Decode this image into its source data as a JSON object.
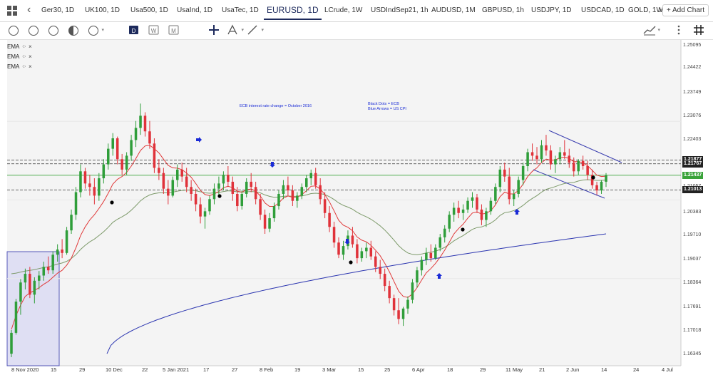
{
  "tabs": [
    {
      "label": "Ger30, 1D",
      "active": false
    },
    {
      "label": "UK100, 1D",
      "active": false
    },
    {
      "label": "Usa500, 1D",
      "active": false
    },
    {
      "label": "UsaInd, 1D",
      "active": false
    },
    {
      "label": "UsaTec, 1D",
      "active": false
    },
    {
      "label": "EURUSD, 1D",
      "active": true
    },
    {
      "label": "LCrude, 1W",
      "active": false
    },
    {
      "label": "USDIndSep21, 1h",
      "active": false
    },
    {
      "label": "AUDUSD, 1M",
      "active": false
    },
    {
      "label": "GBPUSD, 1h",
      "active": false
    },
    {
      "label": "USDJPY, 1D",
      "active": false
    },
    {
      "label": "USDCAD, 1D",
      "active": false
    },
    {
      "label": "GOLD, 1W",
      "active": false
    }
  ],
  "add_chart_label": "+ Add Chart",
  "toolbar_icons": [
    "circle-tool-icon",
    "circle-tool-2-icon",
    "circle-tool-3-icon",
    "circle-tool-4-icon",
    "circle-tool-5-icon",
    "timeframe-d-icon",
    "timeframe-w-icon",
    "timeframe-m-icon",
    "crosshair-icon",
    "fibonacci-icon",
    "line-draw-icon",
    "indicator-icon",
    "settings-icon",
    "grid-icon"
  ],
  "timeframe_letters": [
    "D",
    "W",
    "M"
  ],
  "indicators": [
    {
      "name": "EMA"
    },
    {
      "name": "EMA"
    },
    {
      "name": "EMA"
    }
  ],
  "annotations": {
    "ecb_note": "ECB interest rate change = October 2016",
    "legend_note_1": "Black Dots = ECB",
    "legend_note_2": "Blue Arrows = US CPI"
  },
  "price_axis": [
    "1.25095",
    "1.24422",
    "1.23749",
    "1.23076",
    "1.22403",
    "1.21730",
    "1.21057",
    "1.20383",
    "1.19710",
    "1.19037",
    "1.18364",
    "1.17691",
    "1.17018",
    "1.16345"
  ],
  "price_tags": [
    {
      "value": "1.21877",
      "color": "#ffffff",
      "bg": "#222222"
    },
    {
      "value": "1.21767",
      "color": "#ffffff",
      "bg": "#222222"
    },
    {
      "value": "1.21437",
      "color": "#ffffff",
      "bg": "#3aa33a"
    },
    {
      "value": "1.21013",
      "color": "#ffffff",
      "bg": "#222222"
    }
  ],
  "date_axis": [
    "8 Nov 2020",
    "15",
    "29",
    "10 Dec",
    "22",
    "5 Jan 2021",
    "17",
    "27",
    "8 Feb",
    "19",
    "3 Mar",
    "15",
    "25",
    "6 Apr",
    "18",
    "29",
    "11 May",
    "21",
    "2 Jun",
    "14",
    "24",
    "4 Jul"
  ],
  "chart_data": {
    "type": "candlestick",
    "symbol": "EURUSD, 1D",
    "ylim": [
      1.162,
      1.2525
    ],
    "horizontal_levels": [
      1.21877,
      1.21767,
      1.21437,
      1.21013
    ],
    "colors": {
      "up": "#2f9e3a",
      "down": "#e0323a",
      "ema_fast": "#e03a3a",
      "ema_mid": "#7d9a6a",
      "ema_slow": "#2b35b0",
      "arrow": "#1a2bd6",
      "dot": "#000000"
    },
    "candles": [
      [
        1.163,
        1.1698,
        1.162,
        1.169
      ],
      [
        1.169,
        1.1788,
        1.1685,
        1.178
      ],
      [
        1.178,
        1.1845,
        1.1742,
        1.1835
      ],
      [
        1.1835,
        1.1875,
        1.1815,
        1.186
      ],
      [
        1.186,
        1.188,
        1.179,
        1.18
      ],
      [
        1.18,
        1.185,
        1.1775,
        1.184
      ],
      [
        1.184,
        1.1868,
        1.1815,
        1.1855
      ],
      [
        1.1855,
        1.1895,
        1.184,
        1.188
      ],
      [
        1.188,
        1.191,
        1.186,
        1.187
      ],
      [
        1.187,
        1.1925,
        1.186,
        1.1915
      ],
      [
        1.1915,
        1.1945,
        1.1895,
        1.193
      ],
      [
        1.193,
        1.196,
        1.1905,
        1.192
      ],
      [
        1.192,
        1.1995,
        1.1915,
        1.1985
      ],
      [
        1.1985,
        1.2045,
        1.1975,
        1.203
      ],
      [
        1.203,
        1.211,
        1.2015,
        1.2095
      ],
      [
        1.2095,
        1.2175,
        1.208,
        1.2155
      ],
      [
        1.2155,
        1.2165,
        1.2105,
        1.212
      ],
      [
        1.212,
        1.2145,
        1.2085,
        1.211
      ],
      [
        1.211,
        1.2135,
        1.206,
        1.2085
      ],
      [
        1.2085,
        1.215,
        1.207,
        1.2135
      ],
      [
        1.2135,
        1.219,
        1.212,
        1.2175
      ],
      [
        1.2175,
        1.2235,
        1.216,
        1.222
      ],
      [
        1.222,
        1.2265,
        1.22,
        1.225
      ],
      [
        1.225,
        1.2255,
        1.2175,
        1.219
      ],
      [
        1.219,
        1.2205,
        1.2145,
        1.216
      ],
      [
        1.216,
        1.221,
        1.2145,
        1.22
      ],
      [
        1.22,
        1.226,
        1.2185,
        1.2245
      ],
      [
        1.2245,
        1.23,
        1.2225,
        1.228
      ],
      [
        1.228,
        1.235,
        1.226,
        1.2315
      ],
      [
        1.2315,
        1.2325,
        1.2255,
        1.227
      ],
      [
        1.227,
        1.23,
        1.222,
        1.2235
      ],
      [
        1.2235,
        1.225,
        1.215,
        1.2165
      ],
      [
        1.2165,
        1.219,
        1.213,
        1.215
      ],
      [
        1.215,
        1.2165,
        1.209,
        1.2105
      ],
      [
        1.2105,
        1.213,
        1.206,
        1.2085
      ],
      [
        1.2085,
        1.214,
        1.208,
        1.213
      ],
      [
        1.213,
        1.2175,
        1.211,
        1.216
      ],
      [
        1.216,
        1.218,
        1.2125,
        1.214
      ],
      [
        1.214,
        1.2165,
        1.2095,
        1.211
      ],
      [
        1.211,
        1.213,
        1.207,
        1.209
      ],
      [
        1.209,
        1.2105,
        1.204,
        1.206
      ],
      [
        1.206,
        1.208,
        1.2005,
        1.2025
      ],
      [
        1.2025,
        1.205,
        1.199,
        1.204
      ],
      [
        1.204,
        1.2085,
        1.203,
        1.2075
      ],
      [
        1.2075,
        1.212,
        1.206,
        1.2105
      ],
      [
        1.2105,
        1.214,
        1.208,
        1.212
      ],
      [
        1.212,
        1.2155,
        1.21,
        1.2145
      ],
      [
        1.2145,
        1.217,
        1.211,
        1.2125
      ],
      [
        1.2125,
        1.214,
        1.207,
        1.209
      ],
      [
        1.209,
        1.211,
        1.204,
        1.2055
      ],
      [
        1.2055,
        1.21,
        1.2045,
        1.209
      ],
      [
        1.209,
        1.2135,
        1.208,
        1.2125
      ],
      [
        1.2125,
        1.215,
        1.2095,
        1.211
      ],
      [
        1.211,
        1.2125,
        1.206,
        1.2075
      ],
      [
        1.2075,
        1.209,
        1.2015,
        1.203
      ],
      [
        1.203,
        1.2045,
        1.1975,
        1.199
      ],
      [
        1.199,
        1.2035,
        1.198,
        1.202
      ],
      [
        1.202,
        1.2065,
        1.201,
        1.2055
      ],
      [
        1.2055,
        1.21,
        1.2045,
        1.209
      ],
      [
        1.209,
        1.213,
        1.2075,
        1.2115
      ],
      [
        1.2115,
        1.214,
        1.2085,
        1.21
      ],
      [
        1.21,
        1.2115,
        1.2055,
        1.207
      ],
      [
        1.207,
        1.2095,
        1.205,
        1.2085
      ],
      [
        1.2085,
        1.212,
        1.2075,
        1.211
      ],
      [
        1.211,
        1.2145,
        1.2095,
        1.2135
      ],
      [
        1.2135,
        1.216,
        1.2115,
        1.215
      ],
      [
        1.215,
        1.2165,
        1.2105,
        1.2115
      ],
      [
        1.2115,
        1.2135,
        1.206,
        1.2075
      ],
      [
        1.2075,
        1.2095,
        1.202,
        1.2035
      ],
      [
        1.2035,
        1.2055,
        1.198,
        1.1995
      ],
      [
        1.1995,
        1.201,
        1.1935,
        1.195
      ],
      [
        1.195,
        1.1965,
        1.1905,
        1.1915
      ],
      [
        1.1915,
        1.1955,
        1.19,
        1.194
      ],
      [
        1.194,
        1.1985,
        1.193,
        1.197
      ],
      [
        1.197,
        1.1995,
        1.1935,
        1.1945
      ],
      [
        1.1945,
        1.196,
        1.189,
        1.1905
      ],
      [
        1.1905,
        1.1935,
        1.1895,
        1.1925
      ],
      [
        1.1925,
        1.195,
        1.1905,
        1.1935
      ],
      [
        1.1935,
        1.1955,
        1.19,
        1.191
      ],
      [
        1.191,
        1.1925,
        1.1865,
        1.188
      ],
      [
        1.188,
        1.19,
        1.1845,
        1.186
      ],
      [
        1.186,
        1.1875,
        1.181,
        1.1825
      ],
      [
        1.1825,
        1.184,
        1.1775,
        1.179
      ],
      [
        1.179,
        1.18,
        1.174,
        1.1755
      ],
      [
        1.1755,
        1.179,
        1.1715,
        1.173
      ],
      [
        1.173,
        1.1765,
        1.171,
        1.176
      ],
      [
        1.176,
        1.1795,
        1.1745,
        1.1785
      ],
      [
        1.1785,
        1.1845,
        1.1775,
        1.1835
      ],
      [
        1.1835,
        1.188,
        1.182,
        1.187
      ],
      [
        1.187,
        1.191,
        1.1855,
        1.19
      ],
      [
        1.19,
        1.1935,
        1.1885,
        1.192
      ],
      [
        1.192,
        1.1945,
        1.1895,
        1.1905
      ],
      [
        1.1905,
        1.1945,
        1.19,
        1.1935
      ],
      [
        1.1935,
        1.1975,
        1.1925,
        1.1965
      ],
      [
        1.1965,
        1.2,
        1.195,
        1.199
      ],
      [
        1.199,
        1.204,
        1.198,
        1.203
      ],
      [
        1.203,
        1.2065,
        1.201,
        1.205
      ],
      [
        1.205,
        1.207,
        1.202,
        1.2035
      ],
      [
        1.2035,
        1.206,
        1.2015,
        1.2045
      ],
      [
        1.2045,
        1.208,
        1.2035,
        1.207
      ],
      [
        1.207,
        1.2095,
        1.205,
        1.208
      ],
      [
        1.208,
        1.209,
        1.2035,
        1.2045
      ],
      [
        1.2045,
        1.206,
        1.2,
        1.2015
      ],
      [
        1.2015,
        1.205,
        1.1995,
        1.204
      ],
      [
        1.204,
        1.208,
        1.203,
        1.207
      ],
      [
        1.207,
        1.212,
        1.206,
        1.211
      ],
      [
        1.211,
        1.217,
        1.2095,
        1.216
      ],
      [
        1.216,
        1.218,
        1.2125,
        1.214
      ],
      [
        1.214,
        1.2165,
        1.206,
        1.2075
      ],
      [
        1.2075,
        1.21,
        1.2055,
        1.209
      ],
      [
        1.209,
        1.214,
        1.208,
        1.213
      ],
      [
        1.213,
        1.218,
        1.2115,
        1.217
      ],
      [
        1.217,
        1.222,
        1.2155,
        1.221
      ],
      [
        1.221,
        1.2235,
        1.2185,
        1.22
      ],
      [
        1.22,
        1.2225,
        1.2175,
        1.219
      ],
      [
        1.219,
        1.2245,
        1.218,
        1.223
      ],
      [
        1.223,
        1.226,
        1.22,
        1.2215
      ],
      [
        1.2215,
        1.223,
        1.216,
        1.2175
      ],
      [
        1.2175,
        1.22,
        1.215,
        1.219
      ],
      [
        1.219,
        1.2225,
        1.2175,
        1.221
      ],
      [
        1.221,
        1.2245,
        1.219,
        1.22
      ],
      [
        1.22,
        1.222,
        1.2165,
        1.218
      ],
      [
        1.218,
        1.2195,
        1.214,
        1.2155
      ],
      [
        1.2155,
        1.219,
        1.2145,
        1.2185
      ],
      [
        1.2185,
        1.22,
        1.216,
        1.217
      ],
      [
        1.217,
        1.2185,
        1.213,
        1.2145
      ],
      [
        1.2145,
        1.216,
        1.2105,
        1.2115
      ],
      [
        1.2115,
        1.2125,
        1.2085,
        1.21
      ],
      [
        1.21,
        1.213,
        1.209,
        1.2125
      ],
      [
        1.2125,
        1.215,
        1.211,
        1.2144
      ]
    ],
    "ema_fast": [
      1.17,
      1.174,
      1.177,
      1.1795,
      1.1805,
      1.1812,
      1.182,
      1.183,
      1.1838,
      1.185,
      1.1862,
      1.187,
      1.1885,
      1.1905,
      1.1935,
      1.197,
      1.1995,
      1.2015,
      1.203,
      1.2048,
      1.2068,
      1.2092,
      1.2118,
      1.2132,
      1.214,
      1.2152,
      1.217,
      1.2192,
      1.2215,
      1.2228,
      1.223,
      1.222,
      1.2208,
      1.219,
      1.2172,
      1.2165,
      1.2164,
      1.216,
      1.215,
      1.2138,
      1.212,
      1.21,
      1.2088,
      1.2085,
      1.209,
      1.2097,
      1.2108,
      1.2112,
      1.2108,
      1.2098,
      1.2095,
      1.2102,
      1.2104,
      1.2098,
      1.2084,
      1.2064,
      1.2054,
      1.2054,
      1.2064,
      1.2078,
      1.2084,
      1.208,
      1.2081,
      1.2088,
      1.2099,
      1.2112,
      1.2113,
      1.2104,
      1.2088,
      1.2067,
      1.2041,
      1.2014,
      1.2,
      1.1994,
      1.1984,
      1.1966,
      1.1957,
      1.1952,
      1.1942,
      1.1928,
      1.1912,
      1.189,
      1.1866,
      1.1838,
      1.181,
      1.1795,
      1.1792,
      1.1802,
      1.182,
      1.1842,
      1.1863,
      1.1875,
      1.189,
      1.1908,
      1.1928,
      1.1951,
      1.1975,
      1.199,
      1.2003,
      1.202,
      1.2035,
      1.2038,
      1.2032,
      1.2034,
      1.2042,
      1.2058,
      1.2082,
      1.2095,
      1.209,
      1.209,
      1.21,
      1.2118,
      1.214,
      1.2155,
      1.2165,
      1.218,
      1.219,
      1.2187,
      1.2188,
      1.2194,
      1.2196,
      1.2192,
      1.2183,
      1.2183,
      1.218,
      1.2171,
      1.2158,
      1.2144,
      1.214,
      1.2141
    ],
    "ema_mid": [
      1.186,
      1.1862,
      1.1865,
      1.1868,
      1.187,
      1.1872,
      1.1875,
      1.1878,
      1.188,
      1.1884,
      1.1888,
      1.1891,
      1.1896,
      1.1904,
      1.1915,
      1.193,
      1.1942,
      1.1952,
      1.196,
      1.197,
      1.1981,
      1.1994,
      1.2008,
      1.2017,
      1.2024,
      1.2032,
      1.2043,
      1.2056,
      1.207,
      1.208,
      1.2087,
      1.2091,
      1.2093,
      1.2093,
      1.2093,
      1.2095,
      1.2098,
      1.21,
      1.2101,
      1.2101,
      1.2099,
      1.2096,
      1.2093,
      1.2092,
      1.2093,
      1.2094,
      1.2097,
      1.2099,
      1.2098,
      1.2096,
      1.2095,
      1.2096,
      1.2097,
      1.2096,
      1.2093,
      1.2087,
      1.2083,
      1.208,
      1.2081,
      1.2083,
      1.2084,
      1.2083,
      1.2083,
      1.2084,
      1.2087,
      1.2091,
      1.2092,
      1.2091,
      1.2088,
      1.2082,
      1.2074,
      1.2064,
      1.2057,
      1.2052,
      1.2046,
      1.2037,
      1.203,
      1.2024,
      1.2017,
      1.2008,
      1.1998,
      1.1986,
      1.1972,
      1.1957,
      1.1941,
      1.1929,
      1.192,
      1.1916,
      1.1915,
      1.1917,
      1.192,
      1.1922,
      1.1925,
      1.193,
      1.1936,
      1.1945,
      1.1955,
      1.1963,
      1.197,
      1.1979,
      1.1988,
      1.1993,
      1.1995,
      1.2,
      1.2006,
      1.2015,
      1.2028,
      1.2036,
      1.2038,
      1.2042,
      1.2048,
      1.2057,
      1.2068,
      1.2077,
      1.2085,
      1.2095,
      1.2103,
      1.2107,
      1.2111,
      1.2116,
      1.212,
      1.2122,
      1.2123,
      1.2127,
      1.213,
      1.2131,
      1.213,
      1.2129,
      1.2129,
      1.213
    ]
  }
}
